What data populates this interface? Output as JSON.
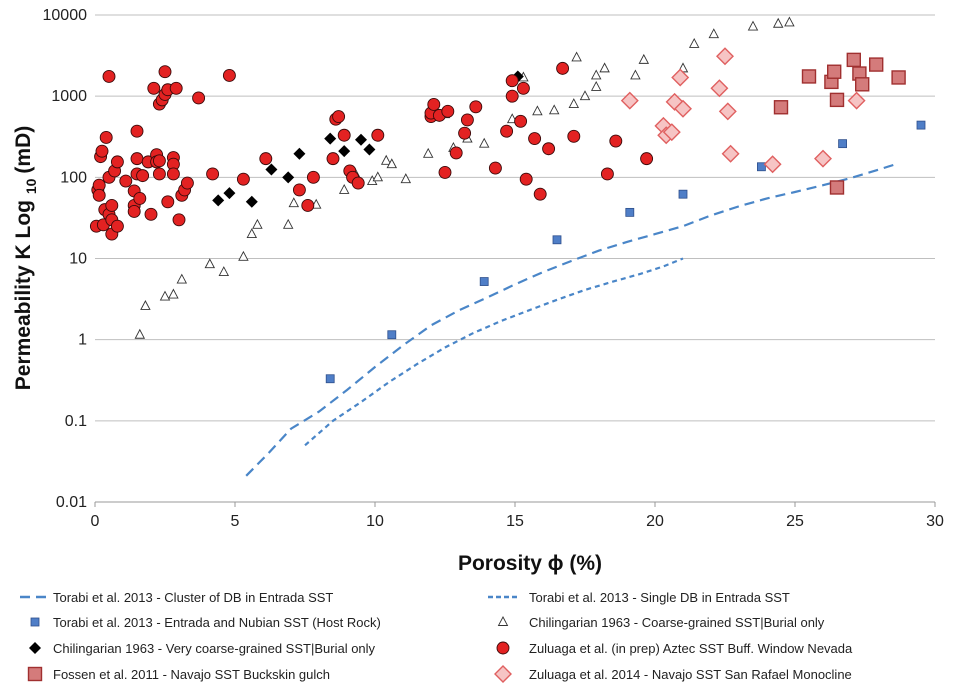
{
  "chart_data": {
    "type": "scatter",
    "title": "",
    "xlabel": "Porosity ϕ (%)",
    "ylabel": "Permeability K Log 10 (mD)",
    "ylabel_parts": {
      "main": "Permeability K Log",
      "sub": "10",
      "unit": "(mD)"
    },
    "xlim": [
      0,
      30
    ],
    "ylim": [
      0.01,
      10000
    ],
    "yscale": "log",
    "grid": "horizontal",
    "x_ticks": [
      "0",
      "5",
      "10",
      "15",
      "20",
      "25",
      "30"
    ],
    "y_ticks": [
      "0.01",
      "0.1",
      "1",
      "10",
      "100",
      "1000",
      "10000"
    ],
    "legend_position": "bottom",
    "colors": {
      "line": "#4a86c8",
      "blue_square": "#4f7ec7",
      "red_circle": "#e32222",
      "red_square": "#d47b7b",
      "pink_diamond": "#f6c4c4",
      "pink_diamond_edge": "#e06060",
      "black": "#000000"
    },
    "series": [
      {
        "name": "Torabi et al. 2013 - Cluster of DB in Entrada SST",
        "kind": "line-dash-long",
        "points": [
          [
            5.4,
            0.021
          ],
          [
            6.2,
            0.04
          ],
          [
            7,
            0.08
          ],
          [
            8,
            0.13
          ],
          [
            9,
            0.24
          ],
          [
            10,
            0.46
          ],
          [
            11,
            0.85
          ],
          [
            12,
            1.5
          ],
          [
            13,
            2.3
          ],
          [
            14,
            3.3
          ],
          [
            15,
            4.8
          ],
          [
            16,
            6.8
          ],
          [
            17,
            9.3
          ],
          [
            18,
            12.5
          ],
          [
            19,
            16
          ],
          [
            20,
            20
          ],
          [
            21,
            25
          ],
          [
            22,
            34
          ],
          [
            23,
            44
          ],
          [
            24,
            55
          ],
          [
            25,
            66
          ],
          [
            26,
            80
          ],
          [
            27,
            98
          ],
          [
            28,
            125
          ],
          [
            28.6,
            145
          ]
        ]
      },
      {
        "name": "Torabi et al. 2013 - Single DB in Entrada SST",
        "kind": "line-dash-short",
        "points": [
          [
            7.5,
            0.05
          ],
          [
            8.5,
            0.1
          ],
          [
            9.5,
            0.17
          ],
          [
            10.5,
            0.3
          ],
          [
            11.5,
            0.5
          ],
          [
            12.5,
            0.8
          ],
          [
            13.5,
            1.2
          ],
          [
            14.5,
            1.7
          ],
          [
            15.5,
            2.3
          ],
          [
            16.5,
            3.1
          ],
          [
            17.5,
            4.1
          ],
          [
            18.5,
            5.2
          ],
          [
            19.5,
            6.5
          ],
          [
            20.3,
            8
          ],
          [
            21,
            10
          ]
        ]
      },
      {
        "name": "Torabi et al. 2013 - Entrada and Nubian SST (Host Rock)",
        "kind": "blue-square",
        "points": [
          [
            8.4,
            0.33
          ],
          [
            10.6,
            1.15
          ],
          [
            13.9,
            5.2
          ],
          [
            16.5,
            17
          ],
          [
            19.1,
            37
          ],
          [
            21,
            62
          ],
          [
            23.8,
            135
          ],
          [
            26.7,
            260
          ],
          [
            29.5,
            440
          ]
        ]
      },
      {
        "name": "Chilingarian 1963 - Coarse-grained SST|Burial only",
        "kind": "open-triangle",
        "points": [
          [
            1.6,
            1.15
          ],
          [
            1.8,
            2.6
          ],
          [
            2.5,
            3.4
          ],
          [
            2.8,
            3.6
          ],
          [
            3.1,
            5.5
          ],
          [
            4.1,
            8.5
          ],
          [
            4.6,
            6.8
          ],
          [
            5.3,
            10.5
          ],
          [
            5.6,
            20
          ],
          [
            5.8,
            26
          ],
          [
            6.9,
            26
          ],
          [
            7.1,
            48
          ],
          [
            7.9,
            46
          ],
          [
            8.9,
            70
          ],
          [
            9.3,
            110
          ],
          [
            9.9,
            90
          ],
          [
            10.1,
            100
          ],
          [
            10.4,
            160
          ],
          [
            10.6,
            145
          ],
          [
            11.1,
            95
          ],
          [
            11.9,
            195
          ],
          [
            12.5,
            600
          ],
          [
            12.8,
            230
          ],
          [
            13.3,
            300
          ],
          [
            13.9,
            260
          ],
          [
            14.9,
            520
          ],
          [
            15.3,
            1700
          ],
          [
            15.8,
            650
          ],
          [
            16.4,
            670
          ],
          [
            17.1,
            800
          ],
          [
            17.2,
            3000
          ],
          [
            17.5,
            1000
          ],
          [
            17.9,
            1300
          ],
          [
            17.9,
            1800
          ],
          [
            18.2,
            2200
          ],
          [
            19.3,
            1800
          ],
          [
            19.6,
            2800
          ],
          [
            21,
            2200
          ],
          [
            21.4,
            4400
          ],
          [
            22.1,
            5800
          ],
          [
            23.5,
            7200
          ],
          [
            24.4,
            7800
          ],
          [
            24.8,
            8100
          ]
        ]
      },
      {
        "name": "Chilingarian 1963 - Very coarse-grained SST|Burial only",
        "kind": "black-diamond",
        "points": [
          [
            4.4,
            52
          ],
          [
            4.8,
            64
          ],
          [
            5.6,
            50
          ],
          [
            6.3,
            125
          ],
          [
            6.9,
            100
          ],
          [
            7.3,
            195
          ],
          [
            8.4,
            300
          ],
          [
            8.9,
            210
          ],
          [
            9.5,
            290
          ],
          [
            9.8,
            220
          ],
          [
            15.1,
            1750
          ]
        ]
      },
      {
        "name": "Zuluaga et al. (in prep) Aztec SST Buff. Window Nevada",
        "kind": "red-circle",
        "points": [
          [
            0.05,
            25
          ],
          [
            0.1,
            70
          ],
          [
            0.15,
            80
          ],
          [
            0.15,
            60
          ],
          [
            0.2,
            180
          ],
          [
            0.25,
            210
          ],
          [
            0.3,
            26
          ],
          [
            0.35,
            40
          ],
          [
            0.4,
            310
          ],
          [
            0.5,
            100
          ],
          [
            0.5,
            35
          ],
          [
            0.5,
            1750
          ],
          [
            0.6,
            30
          ],
          [
            0.6,
            45
          ],
          [
            0.6,
            20
          ],
          [
            0.7,
            120
          ],
          [
            0.8,
            25
          ],
          [
            0.8,
            155
          ],
          [
            1.1,
            90
          ],
          [
            1.4,
            45
          ],
          [
            1.4,
            38
          ],
          [
            1.4,
            68
          ],
          [
            1.5,
            170
          ],
          [
            1.5,
            370
          ],
          [
            1.5,
            110
          ],
          [
            1.6,
            55
          ],
          [
            1.7,
            105
          ],
          [
            1.9,
            155
          ],
          [
            2,
            35
          ],
          [
            2.1,
            1250
          ],
          [
            2.2,
            190
          ],
          [
            2.2,
            155
          ],
          [
            2.3,
            160
          ],
          [
            2.3,
            110
          ],
          [
            2.3,
            800
          ],
          [
            2.4,
            900
          ],
          [
            2.5,
            1050
          ],
          [
            2.5,
            2000
          ],
          [
            2.6,
            1200
          ],
          [
            2.6,
            50
          ],
          [
            2.8,
            175
          ],
          [
            2.8,
            145
          ],
          [
            2.8,
            110
          ],
          [
            2.9,
            1250
          ],
          [
            3,
            30
          ],
          [
            3.1,
            60
          ],
          [
            3.2,
            70
          ],
          [
            3.3,
            85
          ],
          [
            3.7,
            950
          ],
          [
            4.2,
            110
          ],
          [
            4.8,
            1800
          ],
          [
            5.3,
            95
          ],
          [
            6.1,
            170
          ],
          [
            7.3,
            70
          ],
          [
            7.6,
            45
          ],
          [
            7.8,
            100
          ],
          [
            8.5,
            170
          ],
          [
            8.6,
            520
          ],
          [
            8.7,
            560
          ],
          [
            8.9,
            330
          ],
          [
            9.1,
            120
          ],
          [
            9.2,
            100
          ],
          [
            9.4,
            85
          ],
          [
            10.1,
            330
          ],
          [
            12,
            560
          ],
          [
            12,
            620
          ],
          [
            12.1,
            790
          ],
          [
            12.3,
            580
          ],
          [
            12.5,
            115
          ],
          [
            12.6,
            650
          ],
          [
            12.9,
            200
          ],
          [
            13.2,
            350
          ],
          [
            13.3,
            510
          ],
          [
            13.6,
            740
          ],
          [
            14.3,
            130
          ],
          [
            14.7,
            370
          ],
          [
            14.9,
            1000
          ],
          [
            14.9,
            1550
          ],
          [
            15.2,
            490
          ],
          [
            15.3,
            1250
          ],
          [
            15.4,
            95
          ],
          [
            15.7,
            300
          ],
          [
            15.9,
            62
          ],
          [
            16.2,
            225
          ],
          [
            16.7,
            2200
          ],
          [
            17.1,
            320
          ],
          [
            18.3,
            110
          ],
          [
            18.6,
            280
          ],
          [
            19.7,
            170
          ]
        ]
      },
      {
        "name": "Fossen et al. 2011 - Navajo SST Buckskin gulch",
        "kind": "red-square",
        "points": [
          [
            24.5,
            730
          ],
          [
            25.5,
            1750
          ],
          [
            26.3,
            1500
          ],
          [
            26.4,
            2000
          ],
          [
            26.5,
            900
          ],
          [
            26.5,
            75
          ],
          [
            27.1,
            2800
          ],
          [
            27.3,
            1900
          ],
          [
            27.4,
            1400
          ],
          [
            27.9,
            2450
          ],
          [
            28.7,
            1700
          ]
        ]
      },
      {
        "name": "Zuluaga et al. 2014 - Navajo SST San Rafael Monocline",
        "kind": "pink-diamond",
        "points": [
          [
            19.1,
            880
          ],
          [
            20.3,
            430
          ],
          [
            20.4,
            330
          ],
          [
            20.6,
            360
          ],
          [
            20.7,
            850
          ],
          [
            20.9,
            1700
          ],
          [
            21,
            700
          ],
          [
            22.3,
            1250
          ],
          [
            22.5,
            3100
          ],
          [
            22.6,
            650
          ],
          [
            22.7,
            195
          ],
          [
            24.2,
            145
          ],
          [
            26,
            170
          ],
          [
            27.2,
            880
          ]
        ]
      }
    ]
  }
}
